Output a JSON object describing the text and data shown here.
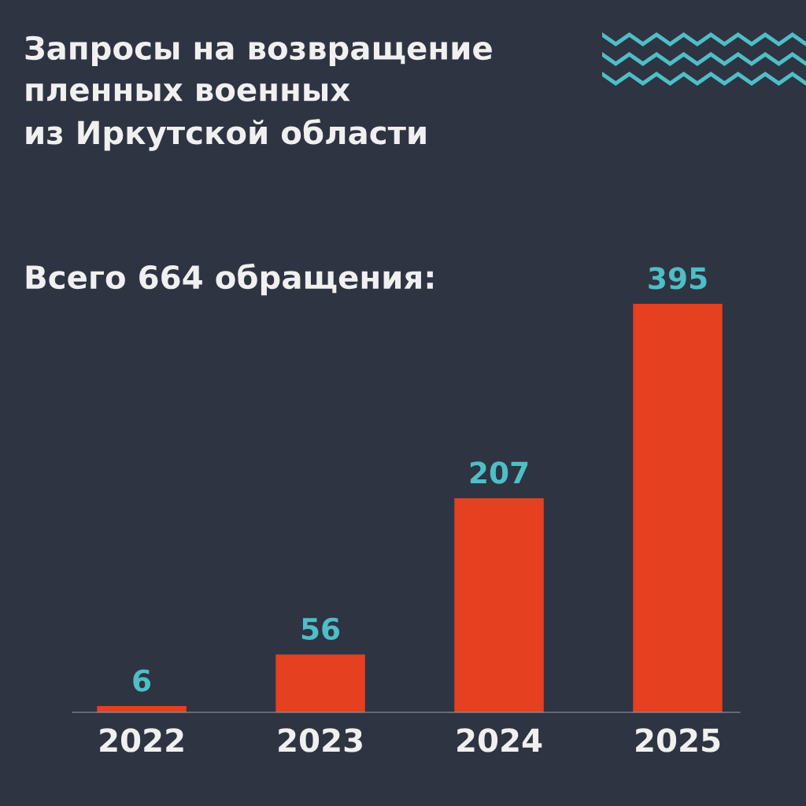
{
  "chart_data": {
    "type": "bar",
    "title": "Запросы на возвращение\nпленных военных\nиз Иркутской области",
    "subtitle": "Всего 664 обращения:",
    "categories": [
      "2022",
      "2023",
      "2024",
      "2025"
    ],
    "values": [
      6,
      56,
      207,
      395
    ],
    "color": "#e5401f",
    "data_labels": true,
    "grid": false,
    "legend": false
  }
}
